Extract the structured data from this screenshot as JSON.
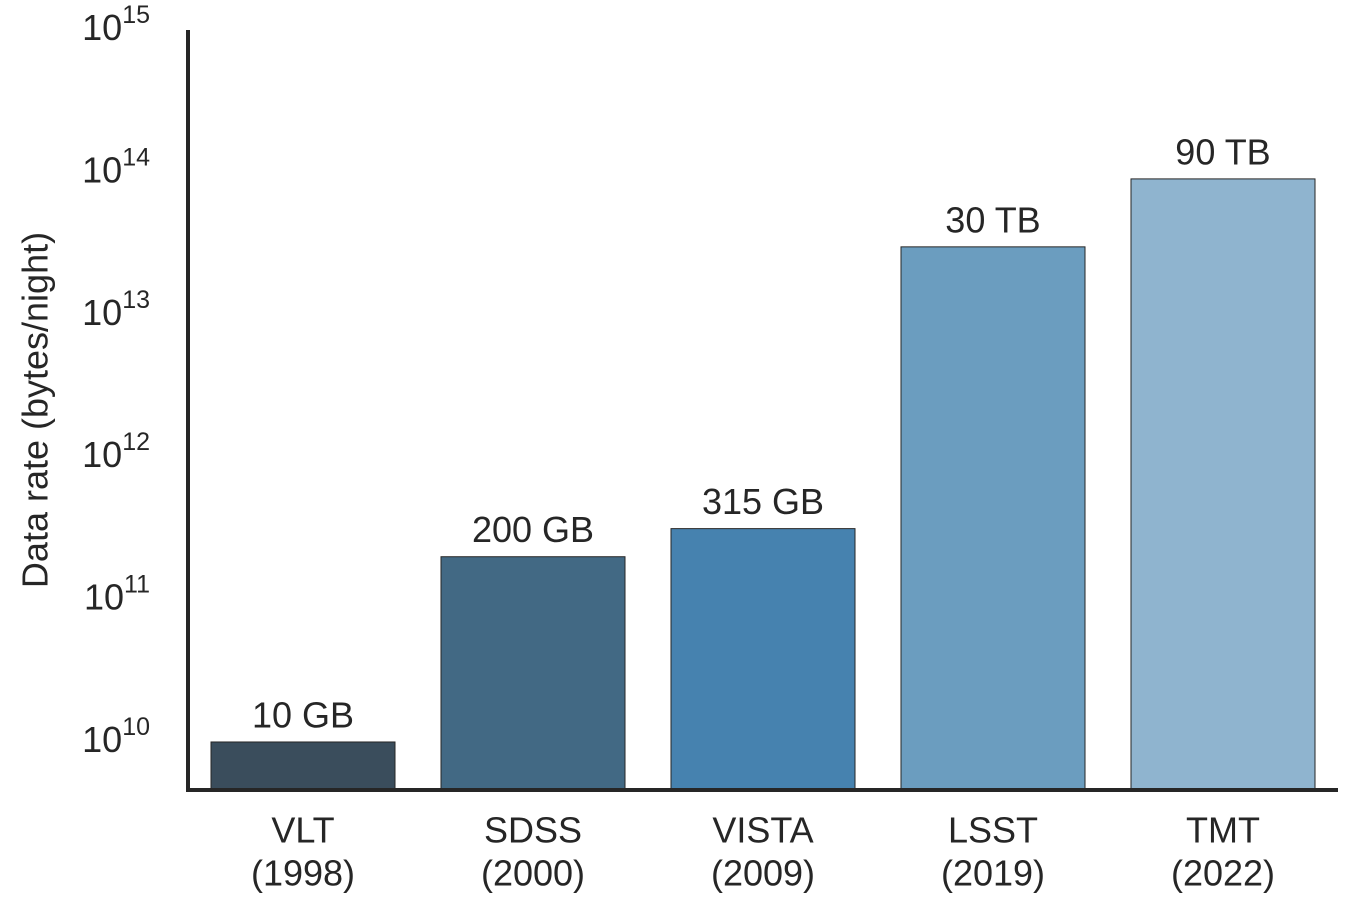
{
  "chart_data": {
    "type": "bar",
    "ylabel": "Data rate (bytes/night)",
    "log_scale": true,
    "categories": [
      [
        "VLT",
        "(1998)"
      ],
      [
        "SDSS",
        "(2000)"
      ],
      [
        "VISTA",
        "(2009)"
      ],
      [
        "LSST",
        "(2019)"
      ],
      [
        "TMT",
        "(2022)"
      ]
    ],
    "values": [
      10000000000,
      200000000000,
      315000000000,
      30000000000000,
      90000000000000
    ],
    "value_labels": [
      "10 GB",
      "200 GB",
      "315 GB",
      "30 TB",
      "90 TB"
    ],
    "colors": [
      "#3a4d5c",
      "#426984",
      "#4682af",
      "#6b9dbf",
      "#8fb4cf"
    ],
    "ylim": [
      4600000000,
      1000000000000000
    ],
    "yticks": [
      {
        "value": 10000000000,
        "label": "10",
        "exponent": "10"
      },
      {
        "value": 100000000000,
        "label": "10",
        "exponent": "11"
      },
      {
        "value": 1000000000000,
        "label": "10",
        "exponent": "12"
      },
      {
        "value": 10000000000000,
        "label": "10",
        "exponent": "13"
      },
      {
        "value": 100000000000000,
        "label": "10",
        "exponent": "14"
      },
      {
        "value": 1000000000000000,
        "label": "10",
        "exponent": "15"
      }
    ],
    "grid": false
  }
}
